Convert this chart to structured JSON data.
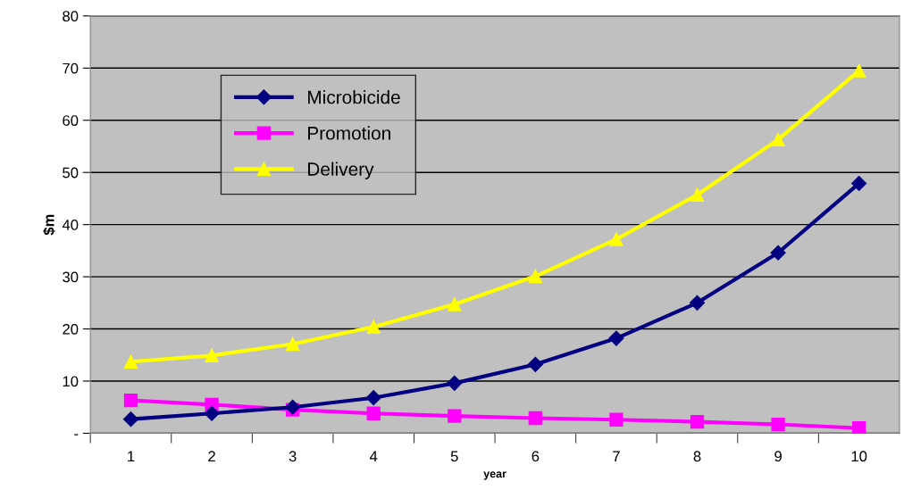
{
  "chart_data": {
    "type": "line",
    "xlabel": "year",
    "ylabel": "$m",
    "categories": [
      "1",
      "2",
      "3",
      "4",
      "5",
      "6",
      "7",
      "8",
      "9",
      "10"
    ],
    "series": [
      {
        "name": "Microbicide",
        "color": "#000080",
        "marker": "diamond",
        "values": [
          2.7,
          3.8,
          5.0,
          6.8,
          9.6,
          13.2,
          18.2,
          25.0,
          34.6,
          47.9
        ]
      },
      {
        "name": "Promotion",
        "color": "#ff00ff",
        "marker": "square",
        "values": [
          6.3,
          5.5,
          4.5,
          3.8,
          3.3,
          2.9,
          2.6,
          2.2,
          1.7,
          1.0
        ]
      },
      {
        "name": "Delivery",
        "color": "#ffff00",
        "marker": "triangle",
        "values": [
          13.7,
          14.9,
          17.1,
          20.4,
          24.7,
          30.1,
          37.2,
          45.7,
          56.3,
          69.5
        ]
      }
    ],
    "ylim": [
      0,
      80
    ],
    "yticks": [
      {
        "value": 0,
        "label": "-"
      },
      10,
      20,
      30,
      40,
      50,
      60,
      70,
      80
    ],
    "grid": "y",
    "legend": "top left",
    "line_style": "solid"
  }
}
